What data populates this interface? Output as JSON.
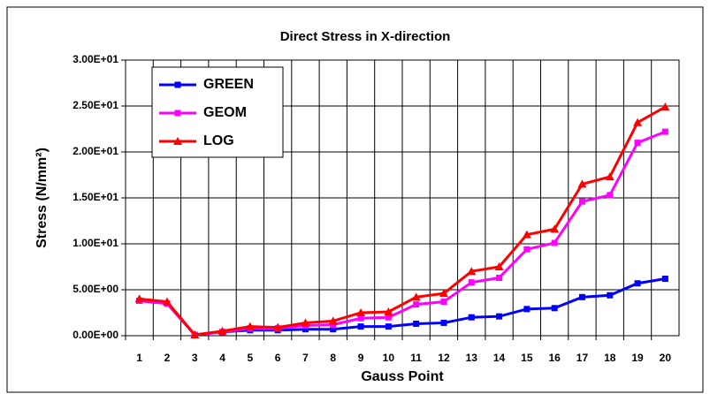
{
  "chart_data": {
    "type": "line",
    "title": "Direct Stress in X-direction",
    "x_label": "Gauss Point",
    "y_label": "Stress  (N/mm²)",
    "categories": [
      "1",
      "2",
      "3",
      "4",
      "5",
      "6",
      "7",
      "8",
      "9",
      "10",
      "11",
      "12",
      "13",
      "14",
      "15",
      "16",
      "17",
      "18",
      "19",
      "20"
    ],
    "series": [
      {
        "name": "GREEN",
        "color": "#0000ff",
        "marker": "square",
        "values": [
          3.8,
          3.5,
          0.1,
          0.4,
          0.6,
          0.6,
          0.7,
          0.7,
          1.0,
          1.0,
          1.3,
          1.4,
          2.0,
          2.1,
          2.9,
          3.0,
          4.2,
          4.4,
          5.7,
          6.2
        ]
      },
      {
        "name": "GEOM",
        "color": "#ff00ff",
        "marker": "square",
        "values": [
          3.8,
          3.5,
          0.1,
          0.4,
          0.8,
          0.8,
          1.1,
          1.2,
          1.9,
          2.0,
          3.4,
          3.7,
          5.8,
          6.3,
          9.4,
          10.1,
          14.6,
          15.3,
          21.0,
          22.2
        ]
      },
      {
        "name": "LOG",
        "color": "#ff0000",
        "marker": "triangle",
        "values": [
          4.0,
          3.7,
          0.1,
          0.5,
          1.0,
          0.9,
          1.4,
          1.6,
          2.5,
          2.6,
          4.2,
          4.6,
          7.0,
          7.5,
          11.0,
          11.6,
          16.5,
          17.3,
          23.2,
          24.9
        ]
      }
    ],
    "ylim": [
      0,
      30
    ],
    "yticks": [
      {
        "value": 0,
        "label": "0.00E+00"
      },
      {
        "value": 5,
        "label": "5.00E+00"
      },
      {
        "value": 10,
        "label": "1.00E+01"
      },
      {
        "value": 15,
        "label": "1.50E+01"
      },
      {
        "value": 20,
        "label": "2.00E+01"
      },
      {
        "value": 25,
        "label": "2.50E+01"
      },
      {
        "value": 30,
        "label": "3.00E+01"
      }
    ],
    "grid": true,
    "legend": "upper left"
  }
}
